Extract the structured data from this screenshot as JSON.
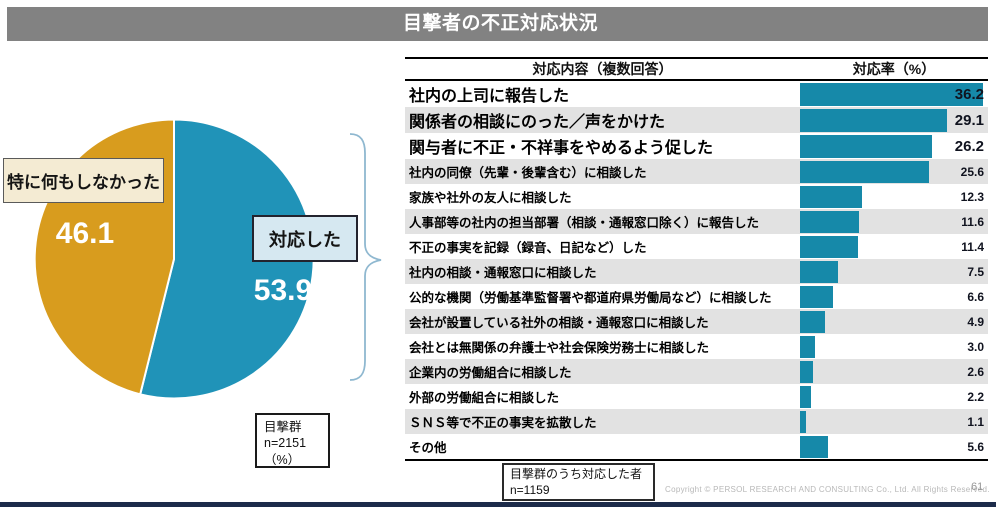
{
  "title": "目撃者の不正対応状況",
  "pie": {
    "segments": [
      {
        "label": "対応した",
        "value": 53.9,
        "color": "#2093b8"
      },
      {
        "label": "特に何もしなかった",
        "value": 46.1,
        "color": "#d89c1e"
      }
    ],
    "note": {
      "group": "目撃群",
      "n": "n=2151",
      "unit": "（%）"
    }
  },
  "table": {
    "col_content": "対応内容（複数回答）",
    "col_rate": "対応率（%）",
    "rows": [
      {
        "label": "社内の上司に報告した",
        "value": 36.2,
        "emphasis": true
      },
      {
        "label": "関係者の相談にのった／声をかけた",
        "value": 29.1,
        "emphasis": true
      },
      {
        "label": "関与者に不正・不祥事をやめるよう促した",
        "value": 26.2,
        "emphasis": true
      },
      {
        "label": "社内の同僚（先輩・後輩含む）に相談した",
        "value": 25.6,
        "emphasis": false
      },
      {
        "label": "家族や社外の友人に相談した",
        "value": 12.3,
        "emphasis": false
      },
      {
        "label": "人事部等の社内の担当部署（相談・通報窓口除く）に報告した",
        "value": 11.6,
        "emphasis": false
      },
      {
        "label": "不正の事実を記録（録音、日記など）した",
        "value": 11.4,
        "emphasis": false
      },
      {
        "label": "社内の相談・通報窓口に相談した",
        "value": 7.5,
        "emphasis": false
      },
      {
        "label": "公的な機関（労働基準監督署や都道府県労働局など）に相談した",
        "value": 6.6,
        "emphasis": false
      },
      {
        "label": "会社が設置している社外の相談・通報窓口に相談した",
        "value": 4.9,
        "emphasis": false
      },
      {
        "label": "会社とは無関係の弁護士や社会保険労務士に相談した",
        "value": 3.0,
        "emphasis": false
      },
      {
        "label": "企業内の労働組合に相談した",
        "value": 2.6,
        "emphasis": false
      },
      {
        "label": "外部の労働組合に相談した",
        "value": 2.2,
        "emphasis": false
      },
      {
        "label": "ＳＮＳ等で不正の事実を拡散した",
        "value": 1.1,
        "emphasis": false
      },
      {
        "label": "その他",
        "value": 5.6,
        "emphasis": false
      }
    ]
  },
  "callout": {
    "line1": "目撃群のうち対応した者",
    "line2": "n=1159"
  },
  "footer": {
    "copyright": "Copyright ©  PERSOL RESEARCH AND CONSULTING Co., Ltd. All Rights Reserved.",
    "page": "61"
  },
  "colors": {
    "bar": "#1689a9",
    "pie_blue": "#2093b8",
    "pie_orange": "#d89c1e",
    "title_bar": "#828282",
    "row_alt": "#e2e2e2",
    "brace": "#8fb8d0",
    "bottom_line": "#1c2b4a"
  },
  "chart_data": [
    {
      "type": "pie",
      "title": "目撃者の不正対応状況",
      "labels": [
        "対応した",
        "特に何もしなかった"
      ],
      "values": [
        53.9,
        46.1
      ],
      "colors": [
        "#2093b8",
        "#d89c1e"
      ],
      "sample_note": "目撃群 n=2151 （%）",
      "start_angle": "top",
      "direction": "clockwise"
    },
    {
      "type": "bar",
      "orientation": "horizontal",
      "column_header": "対応内容（複数回答）",
      "value_header": "対応率（%）",
      "categories": [
        "社内の上司に報告した",
        "関係者の相談にのった／声をかけた",
        "関与者に不正・不祥事をやめるよう促した",
        "社内の同僚（先輩・後輩含む）に相談した",
        "家族や社外の友人に相談した",
        "人事部等の社内の担当部署（相談・通報窓口除く）に報告した",
        "不正の事実を記録（録音、日記など）した",
        "社内の相談・通報窓口に相談した",
        "公的な機関（労働基準監督署や都道府県労働局など）に相談した",
        "会社が設置している社外の相談・通報窓口に相談した",
        "会社とは無関係の弁護士や社会保険労務士に相談した",
        "企業内の労働組合に相談した",
        "外部の労働組合に相談した",
        "ＳＮＳ等で不正の事実を拡散した",
        "その他"
      ],
      "values": [
        36.2,
        29.1,
        26.2,
        25.6,
        12.3,
        11.6,
        11.4,
        7.5,
        6.6,
        4.9,
        3.0,
        2.6,
        2.2,
        1.1,
        5.6
      ],
      "xlim": [
        0,
        37.2
      ],
      "grid": false,
      "sample_note": "目撃群のうち対応した者 n=1159"
    }
  ]
}
